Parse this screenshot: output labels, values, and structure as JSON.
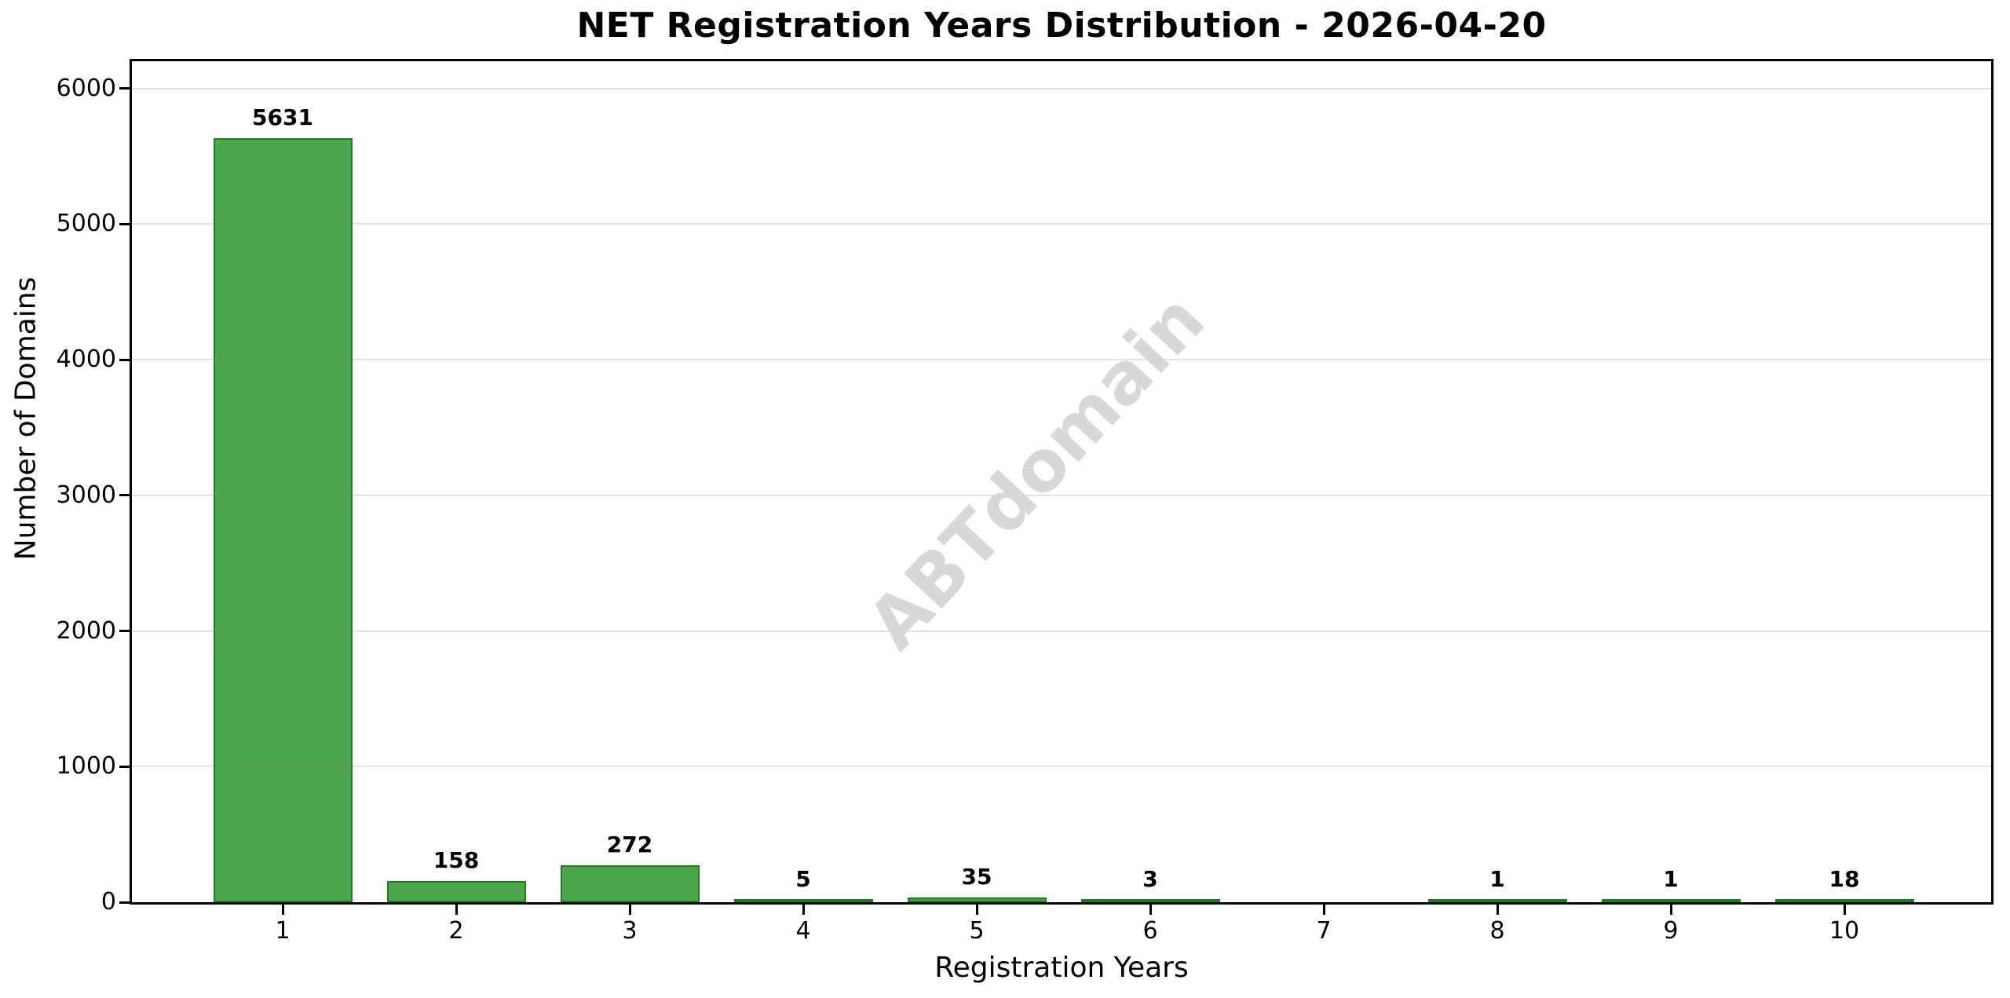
{
  "title": "NET Registration Years Distribution - 2026-04-20",
  "watermark": "ABTdomain",
  "chart_data": {
    "type": "bar",
    "title": "NET Registration Years Distribution - 2026-04-20",
    "xlabel": "Registration Years",
    "ylabel": "Number of Domains",
    "categories": [
      "1",
      "2",
      "3",
      "4",
      "5",
      "6",
      "7",
      "8",
      "9",
      "10"
    ],
    "values": [
      5631,
      158,
      272,
      5,
      35,
      3,
      0,
      1,
      1,
      18
    ],
    "bar_labels": [
      "5631",
      "158",
      "272",
      "5",
      "35",
      "3",
      "",
      "1",
      "1",
      "18"
    ],
    "yticks": [
      0,
      1000,
      2000,
      3000,
      4000,
      5000,
      6000
    ],
    "ylim": [
      0,
      6200
    ],
    "grid": "horizontal-only, drawn over bars",
    "legend": "none",
    "watermark": "ABTdomain",
    "colors": {
      "bar_fill": "#4BA64C",
      "bar_edge": "#1F7D1F",
      "gridline": "rgba(128,128,128,0.22)",
      "watermark": "#d8d8d8",
      "spine": "#000000",
      "text": "#000000",
      "background": "#ffffff"
    }
  }
}
